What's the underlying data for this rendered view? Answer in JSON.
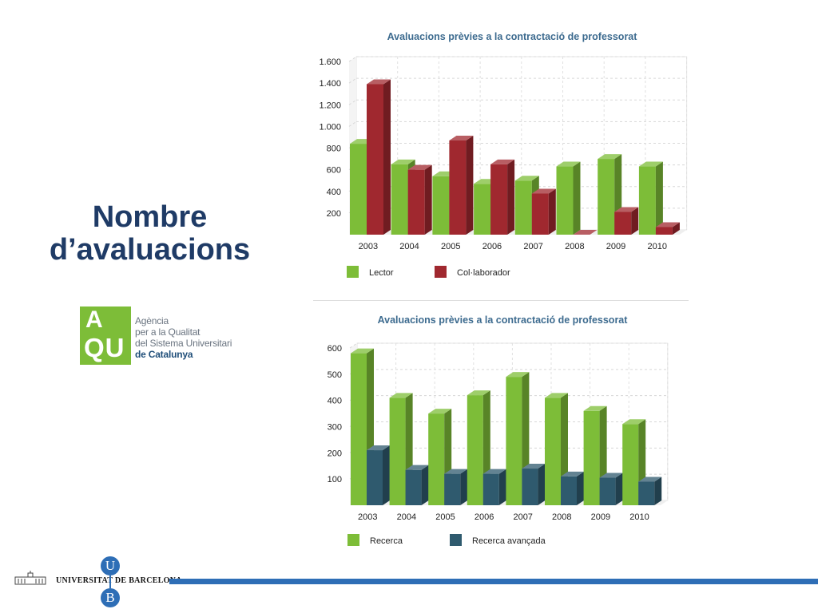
{
  "slide": {
    "title_line1": "Nombre",
    "title_line2": "d’avaluacions"
  },
  "logo": {
    "mark_line1": "A",
    "mark_line2": "QU",
    "text_line1": "Agència",
    "text_line2": "per a la Qualitat",
    "text_line3": "del Sistema Universitari",
    "text_line4": "de Catalunya"
  },
  "footer": {
    "university_name": "UNIVERSITAT DE BARCELONA",
    "letter_u": "U",
    "letter_b": "B"
  },
  "colors": {
    "green": "#7dbd38",
    "red": "#a0282f",
    "teal": "#2f5a6e",
    "title_blue": "#1f3b66",
    "bar_blue": "#2e6eb6"
  },
  "chart_data": [
    {
      "type": "bar",
      "title": "Avaluacions prèvies a la contractació de professorat",
      "categories": [
        "2003",
        "2004",
        "2005",
        "2006",
        "2007",
        "2008",
        "2009",
        "2010"
      ],
      "series": [
        {
          "name": "Lector",
          "color": "#7dbd38",
          "values": [
            840,
            650,
            540,
            470,
            500,
            630,
            700,
            630
          ]
        },
        {
          "name": "Col·laborador",
          "color": "#a0282f",
          "values": [
            1390,
            600,
            870,
            650,
            380,
            0,
            210,
            70
          ]
        }
      ],
      "ylim": [
        0,
        1600
      ],
      "yticks": [
        200,
        400,
        600,
        800,
        1000,
        1200,
        1400,
        1600
      ],
      "ytick_labels": [
        "200",
        "400",
        "600",
        "800",
        "1.000",
        "1.200",
        "1.400",
        "1.600"
      ],
      "xlabel": "",
      "ylabel": "",
      "grid": true,
      "legend_position": "bottom-left"
    },
    {
      "type": "bar",
      "title": "Avaluacions prèvies a la contractació de professorat",
      "categories": [
        "2003",
        "2004",
        "2005",
        "2006",
        "2007",
        "2008",
        "2009",
        "2010"
      ],
      "series": [
        {
          "name": "Recerca",
          "color": "#7dbd38",
          "values": [
            580,
            410,
            350,
            420,
            490,
            410,
            360,
            310
          ]
        },
        {
          "name": "Recerca avançada",
          "color": "#2f5a6e",
          "values": [
            210,
            135,
            120,
            120,
            140,
            110,
            105,
            90
          ]
        }
      ],
      "ylim": [
        0,
        600
      ],
      "yticks": [
        100,
        200,
        300,
        400,
        500,
        600
      ],
      "ytick_labels": [
        "100",
        "200",
        "300",
        "400",
        "500",
        "600"
      ],
      "xlabel": "",
      "ylabel": "",
      "grid": true,
      "legend_position": "bottom-left"
    }
  ]
}
